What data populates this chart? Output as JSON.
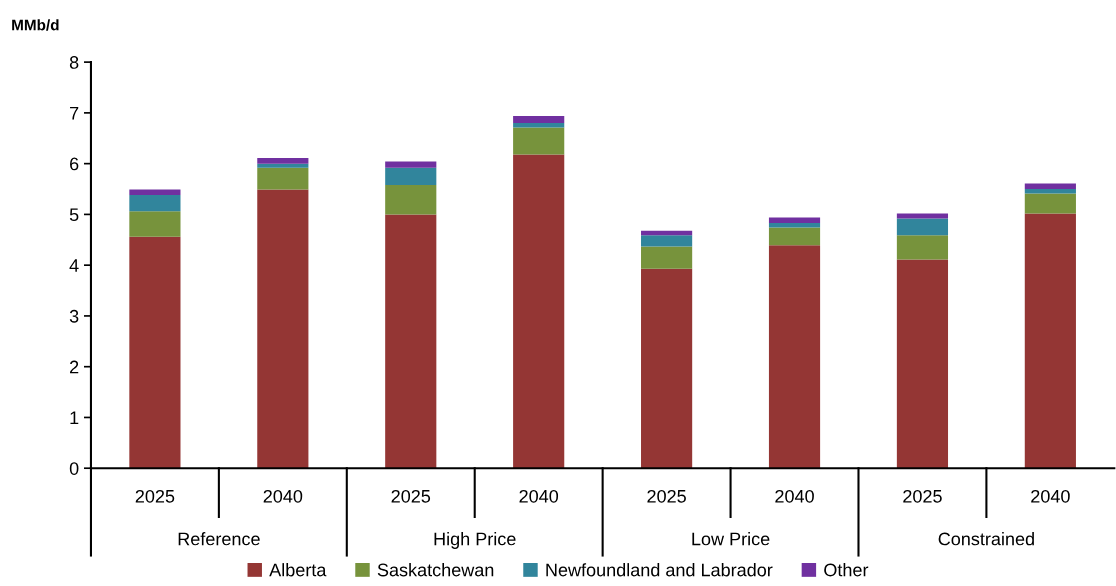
{
  "chart_data": {
    "type": "bar",
    "stacked": true,
    "ylabel": "MMb/d",
    "categories": [
      "2025",
      "2040",
      "2025",
      "2040",
      "2025",
      "2040",
      "2025",
      "2040"
    ],
    "annotations": [
      "Reference",
      "High Price",
      "Low Price",
      "Constrained"
    ],
    "series": [
      {
        "name": "Alberta",
        "color": "#943634",
        "values": [
          4.56,
          5.49,
          5.0,
          6.18,
          3.93,
          4.39,
          4.11,
          5.02
        ]
      },
      {
        "name": "Saskatchewan",
        "color": "#77933c",
        "values": [
          0.5,
          0.43,
          0.58,
          0.53,
          0.44,
          0.35,
          0.48,
          0.39
        ]
      },
      {
        "name": "Newfoundland and Labrador",
        "color": "#31859c",
        "values": [
          0.32,
          0.08,
          0.34,
          0.09,
          0.22,
          0.09,
          0.33,
          0.09
        ]
      },
      {
        "name": "Other",
        "color": "#7030a0",
        "values": [
          0.11,
          0.11,
          0.12,
          0.14,
          0.09,
          0.11,
          0.1,
          0.11
        ]
      }
    ],
    "ylim": [
      0,
      8
    ],
    "yticks": [
      0,
      1,
      2,
      3,
      4,
      5,
      6,
      7,
      8
    ],
    "grid": false,
    "legend": "bottom"
  }
}
